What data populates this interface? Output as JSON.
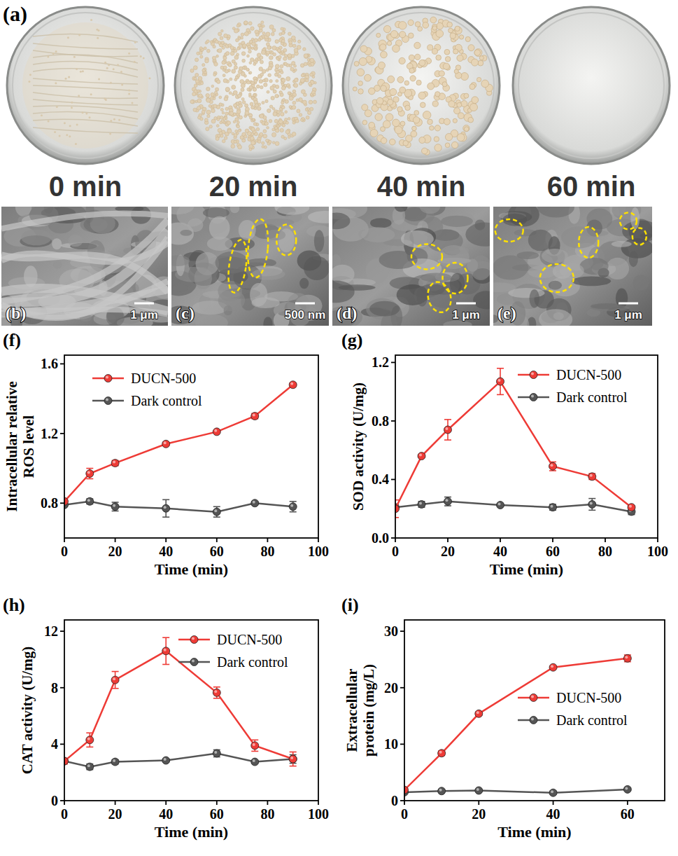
{
  "photos": {
    "label": "(a)",
    "captions": [
      "0 min",
      "20 min",
      "40 min",
      "60 min"
    ]
  },
  "sem": {
    "labels": [
      "(b)",
      "(c)",
      "(d)",
      "(e)"
    ],
    "scale_bars": [
      "1 μm",
      "500 nm",
      "1 μm",
      "1 μm"
    ]
  },
  "chart_data": [
    {
      "type": "line",
      "label": "(f)",
      "x_label": "Time (min)",
      "y_label": "Intracellular relative\nROS level",
      "x": [
        0,
        10,
        20,
        40,
        60,
        75,
        90
      ],
      "xlim": [
        0,
        100
      ],
      "xticks": [
        0,
        20,
        40,
        60,
        80,
        100
      ],
      "ylim": [
        0.6,
        1.65
      ],
      "yticks": [
        0.8,
        1.2,
        1.6
      ],
      "legend": "upper left",
      "marker": "circle",
      "series": [
        {
          "name": "DUCN-500",
          "color": "#ee3b36",
          "values": [
            0.81,
            0.97,
            1.03,
            1.14,
            1.21,
            1.3,
            1.48
          ],
          "errors": [
            0.01,
            0.03,
            0.015,
            0.01,
            0.005,
            0.015,
            0.01
          ]
        },
        {
          "name": "Dark control",
          "color": "#555555",
          "values": [
            0.79,
            0.81,
            0.78,
            0.77,
            0.75,
            0.8,
            0.78
          ],
          "errors": [
            0.01,
            0.015,
            0.025,
            0.05,
            0.03,
            0.01,
            0.03
          ]
        }
      ]
    },
    {
      "type": "line",
      "label": "(g)",
      "x_label": "Time (min)",
      "y_label": "SOD activity (U/mg)",
      "x": [
        0,
        10,
        20,
        40,
        60,
        75,
        90
      ],
      "xlim": [
        0,
        100
      ],
      "xticks": [
        0,
        20,
        40,
        60,
        80,
        100
      ],
      "ylim": [
        0,
        1.25
      ],
      "yticks": [
        {
          "value": 0,
          "label": "0.0"
        },
        0.4,
        0.8,
        1.2
      ],
      "legend": "upper right",
      "marker": "circle",
      "series": [
        {
          "name": "DUCN-500",
          "color": "#ee3b36",
          "values": [
            0.2,
            0.56,
            0.74,
            1.07,
            0.49,
            0.42,
            0.21
          ],
          "errors": [
            0.06,
            0.01,
            0.07,
            0.09,
            0.03,
            0.02,
            0.01
          ]
        },
        {
          "name": "Dark control",
          "color": "#555555",
          "values": [
            0.21,
            0.23,
            0.25,
            0.225,
            0.21,
            0.23,
            0.18
          ],
          "errors": [
            0.02,
            0.02,
            0.03,
            0.01,
            0.02,
            0.04,
            0.02
          ]
        }
      ]
    },
    {
      "type": "line",
      "label": "(h)",
      "x_label": "Time (min)",
      "y_label": "CAT activity (U/mg)",
      "x": [
        0,
        10,
        20,
        40,
        60,
        75,
        90
      ],
      "xlim": [
        0,
        100
      ],
      "xticks": [
        0,
        20,
        40,
        60,
        80,
        100
      ],
      "ylim": [
        0,
        12.8
      ],
      "yticks": [
        0,
        4,
        8,
        12
      ],
      "legend": "upper right",
      "marker": "circle",
      "series": [
        {
          "name": "DUCN-500",
          "color": "#ee3b36",
          "values": [
            2.8,
            4.3,
            8.55,
            10.6,
            7.65,
            3.9,
            2.95
          ],
          "errors": [
            0.2,
            0.5,
            0.6,
            0.95,
            0.4,
            0.4,
            0.5
          ]
        },
        {
          "name": "Dark control",
          "color": "#555555",
          "values": [
            2.8,
            2.4,
            2.75,
            2.85,
            3.35,
            2.75,
            2.95
          ],
          "errors": [
            0.1,
            0.2,
            0.15,
            0.1,
            0.25,
            0.1,
            0.3
          ]
        }
      ]
    },
    {
      "type": "line",
      "label": "(i)",
      "x_label": "Time (min)",
      "y_label": "Extracellular\nprotein (mg/L)",
      "x": [
        0,
        10,
        20,
        40,
        60
      ],
      "xlim": [
        0,
        70
      ],
      "xticks": [
        0,
        20,
        40,
        60
      ],
      "ylim": [
        0,
        32
      ],
      "yticks": [
        0,
        10,
        20,
        30
      ],
      "legend": "center right",
      "marker": "circle",
      "series": [
        {
          "name": "DUCN-500",
          "color": "#ee3b36",
          "values": [
            1.9,
            8.4,
            15.4,
            23.6,
            25.2
          ],
          "errors": [
            0.2,
            0.4,
            0.3,
            0.2,
            0.6
          ]
        },
        {
          "name": "Dark control",
          "color": "#555555",
          "values": [
            1.5,
            1.7,
            1.8,
            1.4,
            2.0
          ],
          "errors": [
            0.1,
            0.3,
            0.2,
            0.3,
            0.2
          ]
        }
      ]
    }
  ]
}
